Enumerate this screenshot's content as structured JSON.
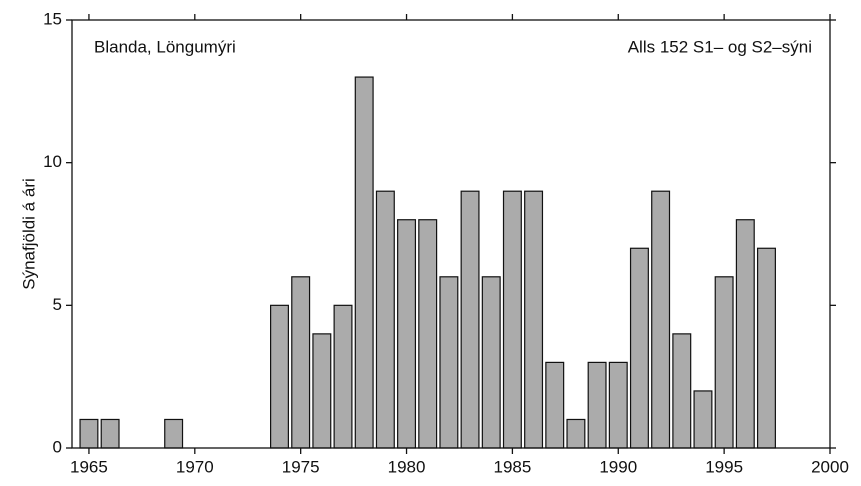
{
  "chart_data": {
    "type": "bar",
    "ylabel": "Sýnafjöldi á ári",
    "annotations": [
      "Blanda, Löngumýri",
      "Alls 152 S1– og S2–sýni"
    ],
    "x": [
      1965,
      1966,
      1969,
      1974,
      1975,
      1976,
      1977,
      1978,
      1979,
      1980,
      1981,
      1982,
      1983,
      1984,
      1985,
      1986,
      1987,
      1988,
      1989,
      1990,
      1991,
      1992,
      1993,
      1994,
      1995,
      1996,
      1997
    ],
    "values": [
      1,
      1,
      1,
      5,
      6,
      4,
      5,
      13,
      9,
      8,
      8,
      6,
      9,
      6,
      9,
      9,
      3,
      1,
      3,
      3,
      7,
      9,
      4,
      2,
      6,
      8,
      7
    ],
    "color": "#ababab",
    "xlim": [
      1964.2,
      2000
    ],
    "xticks": [
      1965,
      1970,
      1975,
      1980,
      1985,
      1990,
      1995,
      2000
    ],
    "ylim": [
      0,
      15
    ],
    "yticks": [
      0,
      5,
      10,
      15
    ]
  }
}
